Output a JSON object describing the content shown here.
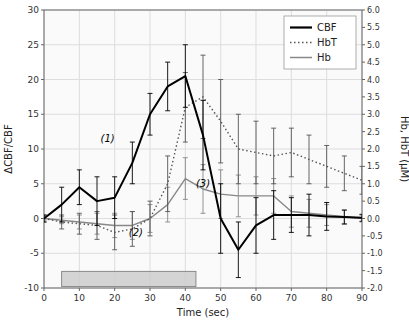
{
  "chart_data": {
    "type": "line",
    "xlabel": "Time (sec)",
    "ylabel": "ΔCBF/CBF",
    "y2label": "Hb, HbT (μM)",
    "x": [
      0,
      5,
      10,
      15,
      20,
      25,
      30,
      35,
      40,
      45,
      50,
      55,
      60,
      65,
      70,
      75,
      80,
      85,
      90
    ],
    "series": [
      {
        "name": "CBF",
        "color": "#000000",
        "line_style": "solid",
        "values": [
          0,
          2,
          4.5,
          2.5,
          3,
          8,
          15,
          19,
          20.5,
          12,
          0,
          -4.5,
          -1,
          0.5,
          0.5,
          0.5,
          0.3,
          0.2,
          0.1
        ],
        "errors": [
          0.5,
          2.5,
          2.5,
          3.5,
          3.0,
          3.0,
          3.0,
          3.5,
          4.5,
          5.0,
          5.0,
          4.0,
          4.0,
          3.5,
          2.5,
          3.0,
          2.0,
          1.0,
          0.5
        ]
      },
      {
        "name": "HbT",
        "color": "#555555",
        "line_style": "dotted",
        "axis": "y2",
        "values": [
          0.0,
          -0.1,
          -0.15,
          -0.2,
          -0.4,
          -0.3,
          0.0,
          1.0,
          3.2,
          3.5,
          2.8,
          2.0,
          1.9,
          1.8,
          1.9,
          1.7,
          1.5,
          1.3,
          1.1
        ],
        "errors": [
          0.1,
          0.2,
          0.3,
          0.4,
          0.5,
          0.5,
          0.5,
          0.8,
          1.0,
          1.2,
          1.2,
          1.0,
          0.9,
          0.8,
          0.7,
          0.7,
          0.6,
          0.5,
          0.4
        ]
      },
      {
        "name": "Hb",
        "color": "#888888",
        "line_style": "solid",
        "axis": "y2",
        "values": [
          0.0,
          -0.05,
          -0.1,
          -0.15,
          -0.2,
          -0.2,
          0.0,
          0.4,
          1.15,
          0.85,
          0.7,
          0.65,
          0.65,
          0.65,
          0.2,
          0.15,
          0.1,
          0.05,
          0.0
        ],
        "errors": [
          0.05,
          0.1,
          0.2,
          0.3,
          0.35,
          0.4,
          0.4,
          0.5,
          0.6,
          0.7,
          0.7,
          0.6,
          0.55,
          0.5,
          0.45,
          0.4,
          0.3,
          0.2,
          0.1
        ]
      }
    ],
    "xlim": [
      0,
      90
    ],
    "xticks": [
      0,
      10,
      20,
      30,
      40,
      50,
      60,
      70,
      80,
      90
    ],
    "ylim": [
      -10,
      30
    ],
    "yticks": [
      -10,
      -5,
      0,
      5,
      10,
      15,
      20,
      25,
      30
    ],
    "y2lim": [
      -2,
      6
    ],
    "y2ticks": [
      {
        "value": -2,
        "label": "-2.0"
      },
      -1.5,
      {
        "value": -1,
        "label": "-1.0"
      },
      -0.5,
      {
        "value": 0,
        "label": "0.0"
      },
      0.5,
      {
        "value": 1,
        "label": "1.0"
      },
      1.5,
      {
        "value": 2,
        "label": "2.0"
      },
      2.5,
      {
        "value": 3,
        "label": "3.0"
      },
      3.5,
      {
        "value": 4,
        "label": "4.0"
      },
      4.5,
      {
        "value": 5,
        "label": "5.0"
      },
      5.5,
      {
        "value": 6,
        "label": "6.0"
      }
    ],
    "shaded_region": {
      "x": [
        5,
        43
      ],
      "y": -9.8,
      "height": 2.2
    },
    "annotations": [
      {
        "text": "(1)",
        "x": 16,
        "y": 11
      },
      {
        "text": "(2)",
        "x": 24,
        "y": -2.5
      },
      {
        "text": "(3)",
        "x": 43,
        "y": 4.5
      }
    ],
    "grid": true,
    "legend": "upper right"
  }
}
